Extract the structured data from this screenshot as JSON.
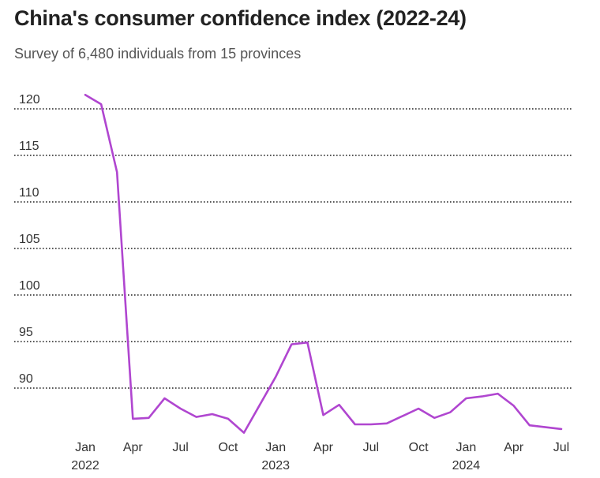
{
  "chart_data": {
    "type": "line",
    "title": "China's consumer confidence index (2022-24)",
    "subtitle": "Survey of 6,480 individuals from 15 provinces",
    "xlabel": "",
    "ylabel": "",
    "ylim": [
      85.5,
      121.5
    ],
    "yticks": [
      120,
      115,
      110,
      105,
      100,
      95,
      90
    ],
    "grid": true,
    "line_color": "#b046d0",
    "x_ticks": [
      {
        "month_index": 0,
        "label": "Jan",
        "year": "2022"
      },
      {
        "month_index": 3,
        "label": "Apr",
        "year": ""
      },
      {
        "month_index": 6,
        "label": "Jul",
        "year": ""
      },
      {
        "month_index": 9,
        "label": "Oct",
        "year": ""
      },
      {
        "month_index": 12,
        "label": "Jan",
        "year": "2023"
      },
      {
        "month_index": 15,
        "label": "Apr",
        "year": ""
      },
      {
        "month_index": 18,
        "label": "Jul",
        "year": ""
      },
      {
        "month_index": 21,
        "label": "Oct",
        "year": ""
      },
      {
        "month_index": 24,
        "label": "Jan",
        "year": "2024"
      },
      {
        "month_index": 27,
        "label": "Apr",
        "year": ""
      },
      {
        "month_index": 30,
        "label": "Jul",
        "year": ""
      }
    ],
    "series": [
      {
        "name": "Consumer confidence index",
        "x": [
          0,
          1,
          2,
          3,
          4,
          5,
          6,
          7,
          8,
          9,
          10,
          11,
          12,
          13,
          14,
          15,
          16,
          17,
          18,
          19,
          20,
          21,
          22,
          23,
          24,
          25,
          26,
          27,
          28,
          29,
          30
        ],
        "values": [
          121.5,
          120.5,
          113.2,
          86.7,
          86.8,
          88.9,
          87.8,
          86.9,
          87.2,
          86.7,
          85.2,
          88.2,
          91.2,
          94.7,
          94.9,
          87.1,
          88.2,
          86.1,
          86.1,
          86.2,
          87.0,
          87.8,
          86.8,
          87.4,
          88.9,
          89.1,
          89.4,
          88.1,
          86.0,
          85.8,
          85.6
        ]
      }
    ]
  }
}
